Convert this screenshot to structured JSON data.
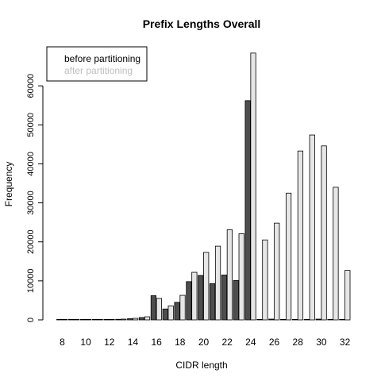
{
  "colors": {
    "before": "#4d4d4d",
    "after": "#e6e6e6",
    "after_text": "#bebebe",
    "axis": "#000000"
  },
  "chart_data": {
    "type": "bar",
    "title": "Prefix Lengths Overall",
    "xlabel": "CIDR length",
    "ylabel": "Frequency",
    "ylim": [
      0,
      70000
    ],
    "yticks": [
      0,
      10000,
      20000,
      30000,
      40000,
      50000,
      60000
    ],
    "xtick_labels": [
      "8",
      "10",
      "12",
      "14",
      "16",
      "18",
      "20",
      "22",
      "24",
      "26",
      "28",
      "30",
      "32"
    ],
    "categories": [
      "8",
      "9",
      "10",
      "11",
      "12",
      "13",
      "14",
      "15",
      "16",
      "17",
      "18",
      "19",
      "20",
      "21",
      "22",
      "23",
      "24",
      "25",
      "26",
      "27",
      "28",
      "29",
      "30",
      "31",
      "32"
    ],
    "legend_position": "top-left",
    "grid": false,
    "series": [
      {
        "name": "before partitioning",
        "values": [
          15,
          10,
          20,
          40,
          80,
          150,
          300,
          600,
          6200,
          2800,
          4500,
          9800,
          11400,
          9300,
          11500,
          10100,
          56200,
          100,
          200,
          100,
          100,
          100,
          200,
          100,
          50
        ]
      },
      {
        "name": "after partitioning",
        "values": [
          20,
          15,
          30,
          50,
          100,
          200,
          400,
          800,
          5500,
          3600,
          6300,
          12200,
          17300,
          18900,
          23100,
          22100,
          68400,
          20500,
          24800,
          32500,
          43300,
          47400,
          44600,
          34000,
          12700
        ]
      }
    ]
  }
}
